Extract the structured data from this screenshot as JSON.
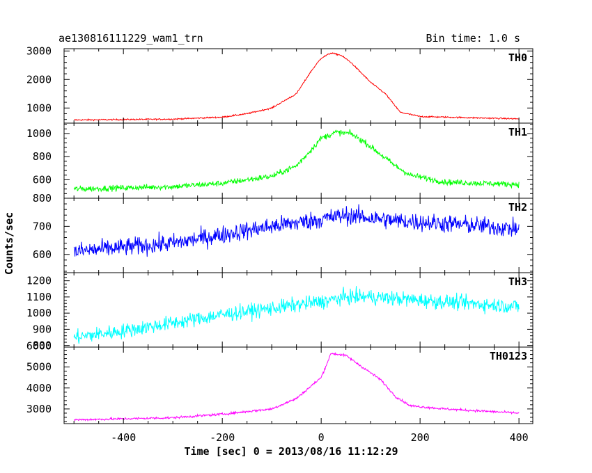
{
  "header": {
    "title": "ae130816111229_wam1_trn",
    "bin_time": "Bin time: 1.0 s"
  },
  "chart_data": {
    "type": "line",
    "xlabel": "Time [sec] 0 = 2013/08/16 11:12:29",
    "ylabel": "Counts/sec",
    "xlim": [
      -520,
      428
    ],
    "x_ticks": [
      -400,
      -200,
      0,
      200,
      400
    ],
    "x_sampling": {
      "start": -500,
      "end": 400,
      "step": 1
    },
    "panels": [
      {
        "name": "TH0",
        "color": "#ff0000",
        "ylim": [
          470,
          3080
        ],
        "y_ticks": [
          1000,
          2000,
          3000
        ],
        "baseline": [
          [
            -500,
            580
          ],
          [
            -300,
            610
          ],
          [
            -200,
            680
          ],
          [
            -150,
            800
          ],
          [
            -100,
            1000
          ],
          [
            -50,
            1500
          ],
          [
            -20,
            2300
          ],
          [
            0,
            2750
          ],
          [
            20,
            2930
          ],
          [
            40,
            2850
          ],
          [
            60,
            2600
          ],
          [
            100,
            1900
          ],
          [
            130,
            1500
          ],
          [
            160,
            850
          ],
          [
            200,
            700
          ],
          [
            300,
            660
          ],
          [
            400,
            620
          ]
        ],
        "noise": 25
      },
      {
        "name": "TH1",
        "color": "#00ff00",
        "ylim": [
          440,
          1090
        ],
        "y_ticks": [
          600,
          800,
          1000
        ],
        "baseline": [
          [
            -500,
            520
          ],
          [
            -300,
            540
          ],
          [
            -200,
            570
          ],
          [
            -100,
            630
          ],
          [
            -50,
            720
          ],
          [
            -20,
            860
          ],
          [
            0,
            960
          ],
          [
            30,
            1010
          ],
          [
            60,
            1000
          ],
          [
            90,
            920
          ],
          [
            120,
            820
          ],
          [
            150,
            720
          ],
          [
            180,
            640
          ],
          [
            250,
            580
          ],
          [
            400,
            560
          ]
        ],
        "noise": 25
      },
      {
        "name": "TH2",
        "color": "#0000ff",
        "ylim": [
          535,
          800
        ],
        "y_ticks": [
          600,
          700,
          800
        ],
        "baseline": [
          [
            -500,
            610
          ],
          [
            -300,
            640
          ],
          [
            -200,
            670
          ],
          [
            -100,
            700
          ],
          [
            0,
            725
          ],
          [
            50,
            740
          ],
          [
            150,
            720
          ],
          [
            300,
            705
          ],
          [
            400,
            690
          ]
        ],
        "noise": 32
      },
      {
        "name": "TH3",
        "color": "#00ffff",
        "ylim": [
          790,
          1250
        ],
        "y_ticks": [
          800,
          900,
          1000,
          1100,
          1200
        ],
        "baseline": [
          [
            -500,
            850
          ],
          [
            -400,
            890
          ],
          [
            -300,
            940
          ],
          [
            -200,
            990
          ],
          [
            -100,
            1030
          ],
          [
            0,
            1070
          ],
          [
            50,
            1100
          ],
          [
            100,
            1100
          ],
          [
            200,
            1080
          ],
          [
            300,
            1060
          ],
          [
            400,
            1040
          ]
        ],
        "noise": 45
      },
      {
        "name": "TH0123",
        "color": "#ff00ff",
        "ylim": [
          2300,
          5950
        ],
        "y_ticks": [
          3000,
          4000,
          5000,
          6000
        ],
        "baseline": [
          [
            -500,
            2480
          ],
          [
            -300,
            2580
          ],
          [
            -200,
            2750
          ],
          [
            -100,
            3000
          ],
          [
            -50,
            3500
          ],
          [
            0,
            4500
          ],
          [
            20,
            5650
          ],
          [
            50,
            5550
          ],
          [
            80,
            5050
          ],
          [
            120,
            4400
          ],
          [
            150,
            3600
          ],
          [
            180,
            3150
          ],
          [
            250,
            3000
          ],
          [
            400,
            2800
          ]
        ],
        "noise": 55
      }
    ]
  }
}
